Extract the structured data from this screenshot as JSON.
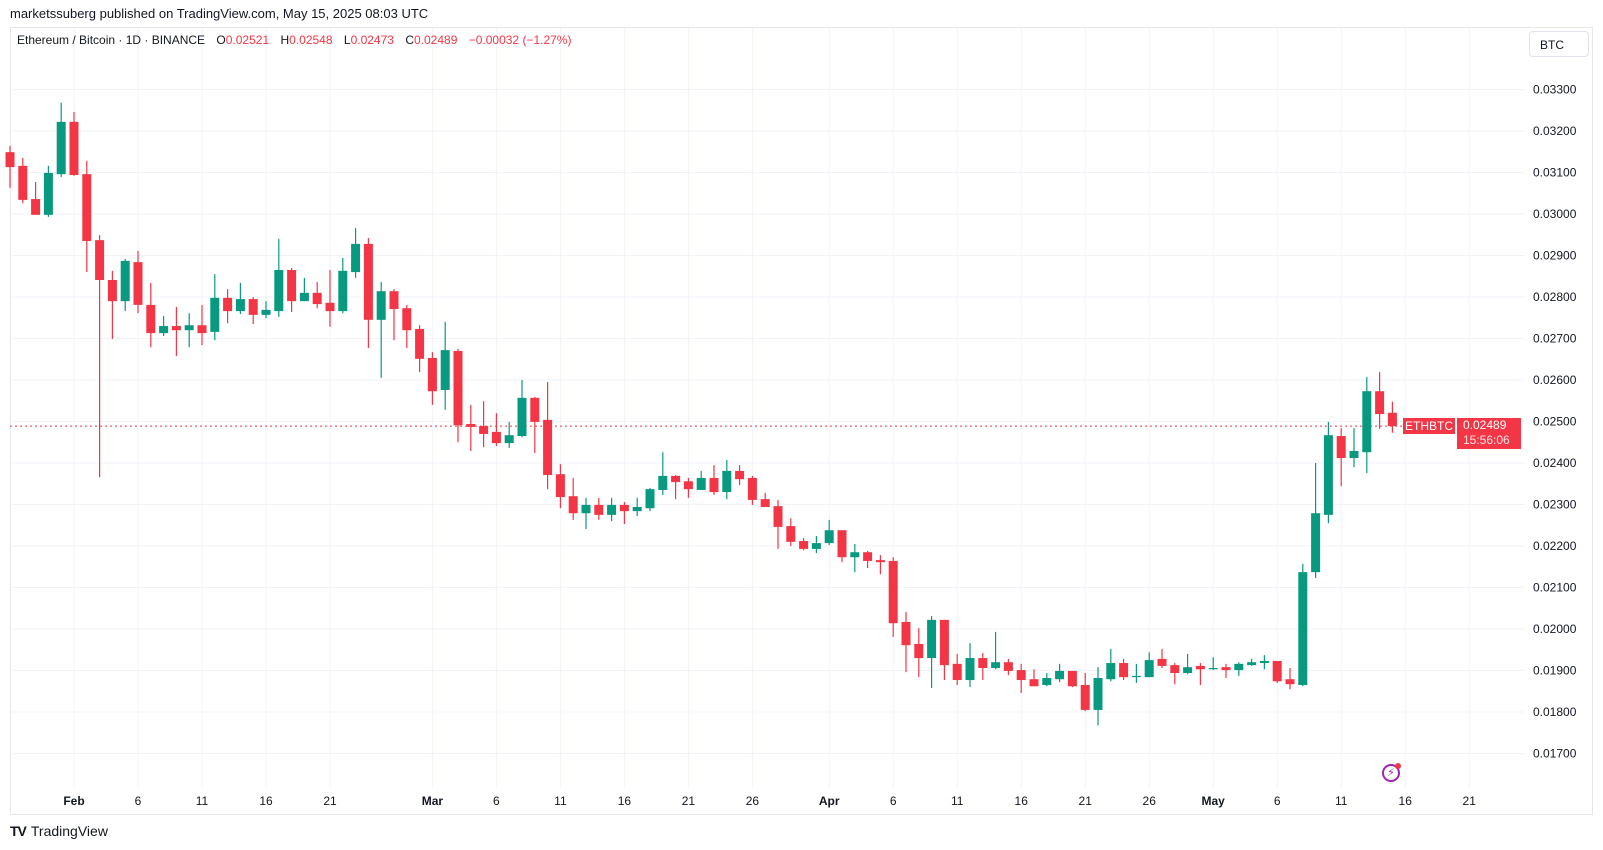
{
  "header": {
    "published": "marketssuberg published on TradingView.com, May 15, 2025 08:03 UTC"
  },
  "legend": {
    "symbol": "Ethereum / Bitcoin · 1D · BINANCE",
    "o_label": "O",
    "o": "0.02521",
    "h_label": "H",
    "h": "0.02548",
    "l_label": "L",
    "l": "0.02473",
    "c_label": "C",
    "c": "0.02489",
    "change": "−0.00032 (−1.27%)"
  },
  "currency_button": "BTC",
  "price_tag": {
    "symbol": "ETHBTC",
    "price": "0.02489",
    "countdown": "15:56:06"
  },
  "footer": {
    "logo": "TradingView"
  },
  "icons": {
    "alert": "lightning-bolt-icon",
    "logo": "tradingview-logo-icon"
  },
  "chart_data": {
    "type": "candlestick",
    "symbol": "ETHBTC",
    "colors": {
      "up": "#089981",
      "down": "#F23645",
      "last_price_line": "#F23645"
    },
    "ylim": [
      0.0165,
      0.0336
    ],
    "grid": true,
    "y_ticks": [
      "0.03300",
      "0.03200",
      "0.03100",
      "0.03000",
      "0.02900",
      "0.02800",
      "0.02700",
      "0.02600",
      "0.02500",
      "0.02400",
      "0.02300",
      "0.02200",
      "0.02100",
      "0.02000",
      "0.01900",
      "0.01800",
      "0.01700"
    ],
    "x_ticks": [
      {
        "label": "Feb",
        "date": "2025-02-01",
        "bold": true
      },
      {
        "label": "6",
        "date": "2025-02-06"
      },
      {
        "label": "11",
        "date": "2025-02-11"
      },
      {
        "label": "16",
        "date": "2025-02-16"
      },
      {
        "label": "21",
        "date": "2025-02-21"
      },
      {
        "label": "Mar",
        "date": "2025-03-01",
        "bold": true
      },
      {
        "label": "6",
        "date": "2025-03-06"
      },
      {
        "label": "11",
        "date": "2025-03-11"
      },
      {
        "label": "16",
        "date": "2025-03-16"
      },
      {
        "label": "21",
        "date": "2025-03-21"
      },
      {
        "label": "26",
        "date": "2025-03-26"
      },
      {
        "label": "Apr",
        "date": "2025-04-01",
        "bold": true
      },
      {
        "label": "6",
        "date": "2025-04-06"
      },
      {
        "label": "11",
        "date": "2025-04-11"
      },
      {
        "label": "16",
        "date": "2025-04-16"
      },
      {
        "label": "21",
        "date": "2025-04-21"
      },
      {
        "label": "26",
        "date": "2025-04-26"
      },
      {
        "label": "May",
        "date": "2025-05-01",
        "bold": true
      },
      {
        "label": "6",
        "date": "2025-05-06"
      },
      {
        "label": "11",
        "date": "2025-05-11"
      },
      {
        "label": "16",
        "date": "2025-05-16"
      },
      {
        "label": "21",
        "date": "2025-05-21"
      }
    ],
    "last_price": 0.02489,
    "candles_fields": [
      "date",
      "open",
      "high",
      "low",
      "close"
    ],
    "candles": [
      [
        "2025-01-27",
        0.03149,
        0.03164,
        0.03063,
        0.03113
      ],
      [
        "2025-01-28",
        0.03116,
        0.03135,
        0.03026,
        0.03034
      ],
      [
        "2025-01-29",
        0.03036,
        0.03077,
        0.02998,
        0.02998
      ],
      [
        "2025-01-30",
        0.02998,
        0.03116,
        0.02993,
        0.03099
      ],
      [
        "2025-01-31",
        0.03096,
        0.03268,
        0.03089,
        0.03222
      ],
      [
        "2025-02-01",
        0.03222,
        0.03246,
        0.03092,
        0.03094
      ],
      [
        "2025-02-02",
        0.03096,
        0.03128,
        0.0286,
        0.02935
      ],
      [
        "2025-02-03",
        0.02937,
        0.02949,
        0.02366,
        0.02841
      ],
      [
        "2025-02-04",
        0.02841,
        0.02863,
        0.02699,
        0.0279
      ],
      [
        "2025-02-05",
        0.0279,
        0.02892,
        0.02766,
        0.02887
      ],
      [
        "2025-02-06",
        0.02884,
        0.02911,
        0.02761,
        0.02781
      ],
      [
        "2025-02-07",
        0.02781,
        0.02834,
        0.02679,
        0.02713
      ],
      [
        "2025-02-08",
        0.02713,
        0.02754,
        0.02706,
        0.0273
      ],
      [
        "2025-02-09",
        0.0273,
        0.02776,
        0.02658,
        0.0272
      ],
      [
        "2025-02-10",
        0.0272,
        0.02761,
        0.02679,
        0.02732
      ],
      [
        "2025-02-11",
        0.02732,
        0.02781,
        0.02684,
        0.02713
      ],
      [
        "2025-02-12",
        0.02716,
        0.02855,
        0.02696,
        0.02798
      ],
      [
        "2025-02-13",
        0.02798,
        0.02819,
        0.02737,
        0.02766
      ],
      [
        "2025-02-14",
        0.02766,
        0.02834,
        0.02759,
        0.02795
      ],
      [
        "2025-02-15",
        0.02795,
        0.028,
        0.02735,
        0.02757
      ],
      [
        "2025-02-16",
        0.02757,
        0.0279,
        0.02749,
        0.02769
      ],
      [
        "2025-02-17",
        0.02766,
        0.0294,
        0.02752,
        0.02865
      ],
      [
        "2025-02-18",
        0.02865,
        0.0287,
        0.02764,
        0.0279
      ],
      [
        "2025-02-19",
        0.0279,
        0.02846,
        0.0279,
        0.0281
      ],
      [
        "2025-02-20",
        0.0281,
        0.02836,
        0.02773,
        0.02783
      ],
      [
        "2025-02-21",
        0.02786,
        0.02865,
        0.02728,
        0.02766
      ],
      [
        "2025-02-22",
        0.02766,
        0.02894,
        0.02761,
        0.02863
      ],
      [
        "2025-02-23",
        0.0286,
        0.02966,
        0.02846,
        0.02928
      ],
      [
        "2025-02-24",
        0.02928,
        0.02942,
        0.02677,
        0.02745
      ],
      [
        "2025-02-25",
        0.02745,
        0.02836,
        0.02605,
        0.02814
      ],
      [
        "2025-02-26",
        0.02814,
        0.02819,
        0.02696,
        0.02771
      ],
      [
        "2025-02-27",
        0.02773,
        0.02781,
        0.02677,
        0.0272
      ],
      [
        "2025-02-28",
        0.02723,
        0.02732,
        0.02619,
        0.02651
      ],
      [
        "2025-03-01",
        0.02653,
        0.02667,
        0.0254,
        0.02573
      ],
      [
        "2025-03-02",
        0.02576,
        0.0274,
        0.02528,
        0.02672
      ],
      [
        "2025-03-03",
        0.0267,
        0.02675,
        0.0245,
        0.02491
      ],
      [
        "2025-03-04",
        0.02494,
        0.0254,
        0.02429,
        0.02487
      ],
      [
        "2025-03-05",
        0.02489,
        0.02549,
        0.02438,
        0.0247
      ],
      [
        "2025-03-06",
        0.02475,
        0.0252,
        0.02441,
        0.02448
      ],
      [
        "2025-03-07",
        0.02448,
        0.02499,
        0.02436,
        0.02467
      ],
      [
        "2025-03-08",
        0.02465,
        0.026,
        0.02462,
        0.02557
      ],
      [
        "2025-03-09",
        0.02557,
        0.02559,
        0.02424,
        0.02499
      ],
      [
        "2025-03-10",
        0.02504,
        0.02595,
        0.02337,
        0.02371
      ],
      [
        "2025-03-11",
        0.02373,
        0.02397,
        0.02291,
        0.02318
      ],
      [
        "2025-03-12",
        0.0232,
        0.02364,
        0.02263,
        0.02279
      ],
      [
        "2025-03-13",
        0.02279,
        0.02316,
        0.02241,
        0.02299
      ],
      [
        "2025-03-14",
        0.02299,
        0.02316,
        0.02263,
        0.02275
      ],
      [
        "2025-03-15",
        0.02275,
        0.02316,
        0.0226,
        0.02299
      ],
      [
        "2025-03-16",
        0.02299,
        0.02306,
        0.02253,
        0.02284
      ],
      [
        "2025-03-17",
        0.02284,
        0.02316,
        0.02272,
        0.02294
      ],
      [
        "2025-03-18",
        0.02291,
        0.0234,
        0.02284,
        0.02337
      ],
      [
        "2025-03-19",
        0.02335,
        0.02426,
        0.02323,
        0.02369
      ],
      [
        "2025-03-20",
        0.02369,
        0.02371,
        0.02313,
        0.02354
      ],
      [
        "2025-03-21",
        0.02356,
        0.02364,
        0.02316,
        0.02337
      ],
      [
        "2025-03-22",
        0.02335,
        0.02381,
        0.02335,
        0.02364
      ],
      [
        "2025-03-23",
        0.02364,
        0.02395,
        0.02323,
        0.0233
      ],
      [
        "2025-03-24",
        0.0233,
        0.02407,
        0.02313,
        0.02381
      ],
      [
        "2025-03-25",
        0.02381,
        0.02395,
        0.02347,
        0.02361
      ],
      [
        "2025-03-26",
        0.02364,
        0.02369,
        0.02299,
        0.02311
      ],
      [
        "2025-03-27",
        0.02313,
        0.02328,
        0.02294,
        0.02294
      ],
      [
        "2025-03-28",
        0.02296,
        0.02311,
        0.02193,
        0.02246
      ],
      [
        "2025-03-29",
        0.02248,
        0.02267,
        0.022,
        0.0221
      ],
      [
        "2025-03-30",
        0.02212,
        0.02219,
        0.0219,
        0.02193
      ],
      [
        "2025-03-31",
        0.02193,
        0.02224,
        0.02183,
        0.02207
      ],
      [
        "2025-04-01",
        0.02207,
        0.02263,
        0.02202,
        0.02238
      ],
      [
        "2025-04-02",
        0.02238,
        0.02238,
        0.02161,
        0.02173
      ],
      [
        "2025-04-03",
        0.02173,
        0.02205,
        0.02137,
        0.02185
      ],
      [
        "2025-04-04",
        0.02185,
        0.02188,
        0.02147,
        0.02164
      ],
      [
        "2025-04-05",
        0.02166,
        0.02178,
        0.02132,
        0.02161
      ],
      [
        "2025-04-06",
        0.02164,
        0.02173,
        0.01981,
        0.02014
      ],
      [
        "2025-04-07",
        0.02017,
        0.02041,
        0.01896,
        0.01961
      ],
      [
        "2025-04-08",
        0.01964,
        0.02002,
        0.01884,
        0.0193
      ],
      [
        "2025-04-09",
        0.0193,
        0.02031,
        0.01858,
        0.02022
      ],
      [
        "2025-04-10",
        0.02022,
        0.02022,
        0.01877,
        0.01913
      ],
      [
        "2025-04-11",
        0.01916,
        0.0194,
        0.01865,
        0.01877
      ],
      [
        "2025-04-12",
        0.01877,
        0.01966,
        0.0186,
        0.0193
      ],
      [
        "2025-04-13",
        0.0193,
        0.01942,
        0.01877,
        0.01906
      ],
      [
        "2025-04-14",
        0.01906,
        0.01993,
        0.01903,
        0.0192
      ],
      [
        "2025-04-15",
        0.0192,
        0.01928,
        0.01889,
        0.01899
      ],
      [
        "2025-04-16",
        0.01901,
        0.01916,
        0.01846,
        0.01877
      ],
      [
        "2025-04-17",
        0.01879,
        0.01903,
        0.01862,
        0.01862
      ],
      [
        "2025-04-18",
        0.01865,
        0.01894,
        0.01862,
        0.01882
      ],
      [
        "2025-04-19",
        0.01879,
        0.01916,
        0.01872,
        0.01899
      ],
      [
        "2025-04-20",
        0.01899,
        0.01899,
        0.0186,
        0.01862
      ],
      [
        "2025-04-21",
        0.01865,
        0.01894,
        0.01802,
        0.01805
      ],
      [
        "2025-04-22",
        0.01805,
        0.01908,
        0.01768,
        0.01882
      ],
      [
        "2025-04-23",
        0.01879,
        0.01952,
        0.01874,
        0.01918
      ],
      [
        "2025-04-24",
        0.01918,
        0.01928,
        0.01877,
        0.01884
      ],
      [
        "2025-04-25",
        0.01884,
        0.01916,
        0.0187,
        0.01887
      ],
      [
        "2025-04-26",
        0.01884,
        0.01944,
        0.01884,
        0.01925
      ],
      [
        "2025-04-27",
        0.01928,
        0.01952,
        0.01906,
        0.01911
      ],
      [
        "2025-04-28",
        0.01913,
        0.01918,
        0.01867,
        0.01894
      ],
      [
        "2025-04-29",
        0.01894,
        0.0194,
        0.01891,
        0.01908
      ],
      [
        "2025-04-30",
        0.01911,
        0.01918,
        0.01865,
        0.01903
      ],
      [
        "2025-05-01",
        0.01903,
        0.01932,
        0.01901,
        0.01906
      ],
      [
        "2025-05-02",
        0.01908,
        0.01916,
        0.01882,
        0.01901
      ],
      [
        "2025-05-03",
        0.01901,
        0.0192,
        0.01887,
        0.01916
      ],
      [
        "2025-05-04",
        0.01913,
        0.01928,
        0.01911,
        0.0192
      ],
      [
        "2025-05-05",
        0.01918,
        0.01937,
        0.01903,
        0.01923
      ],
      [
        "2025-05-06",
        0.01923,
        0.01923,
        0.0187,
        0.01874
      ],
      [
        "2025-05-07",
        0.01879,
        0.01906,
        0.01855,
        0.01867
      ],
      [
        "2025-05-08",
        0.01865,
        0.02157,
        0.01862,
        0.02137
      ],
      [
        "2025-05-09",
        0.02137,
        0.024,
        0.02123,
        0.02279
      ],
      [
        "2025-05-10",
        0.02275,
        0.02499,
        0.02255,
        0.02467
      ],
      [
        "2025-05-11",
        0.02465,
        0.02484,
        0.02344,
        0.02412
      ],
      [
        "2025-05-12",
        0.02412,
        0.02484,
        0.0239,
        0.02429
      ],
      [
        "2025-05-13",
        0.02426,
        0.02607,
        0.02376,
        0.02573
      ],
      [
        "2025-05-14",
        0.02573,
        0.02619,
        0.02482,
        0.02518
      ],
      [
        "2025-05-15",
        0.02521,
        0.02548,
        0.02473,
        0.02489
      ]
    ]
  }
}
